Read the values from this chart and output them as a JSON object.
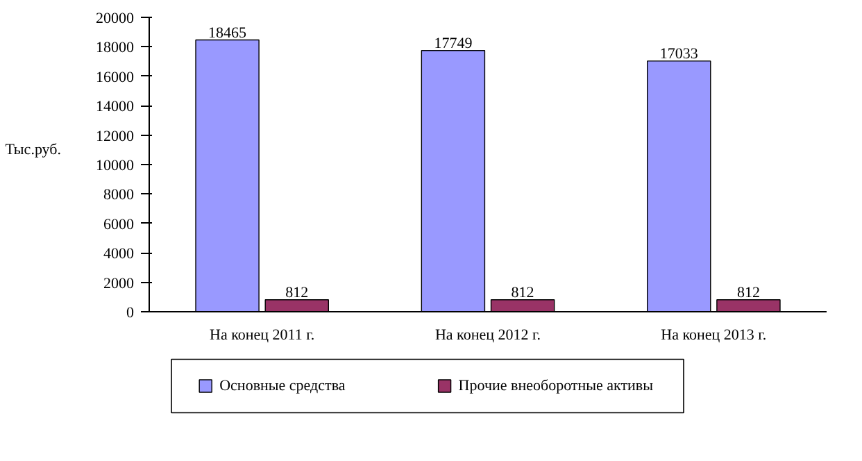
{
  "chart_data": {
    "type": "bar",
    "ylabel": "Тыс.руб.",
    "categories": [
      "На конец 2011 г.",
      "На конец 2012 г.",
      "На конец 2013 г."
    ],
    "series": [
      {
        "name": "Основные средства",
        "color": "#9999ff",
        "values": [
          18465,
          17749,
          17033
        ]
      },
      {
        "name": "Прочие внеоборотные активы",
        "color": "#993366",
        "values": [
          812,
          812,
          812
        ]
      }
    ],
    "ylim": [
      0,
      20000
    ],
    "yticks": [
      0,
      2000,
      4000,
      6000,
      8000,
      10000,
      12000,
      14000,
      16000,
      18000,
      20000
    ],
    "data_labels": true,
    "legend": "bottom",
    "grid": false
  }
}
